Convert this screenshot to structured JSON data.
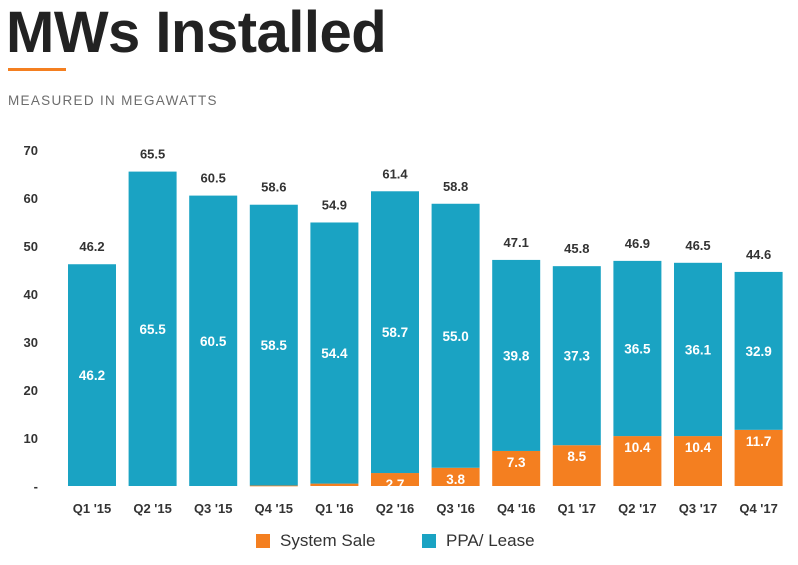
{
  "header": {
    "title": "MWs Installed",
    "subtitle": "MEASURED IN MEGAWATTS"
  },
  "colors": {
    "system_sale": "#f47f20",
    "ppa_lease": "#1aa3c3",
    "accent_rule": "#f47f20"
  },
  "legend": {
    "system_sale": "System Sale",
    "ppa_lease": "PPA/ Lease"
  },
  "chart_data": {
    "type": "bar",
    "stacked": true,
    "categories": [
      "Q1 '15",
      "Q2 '15",
      "Q3 '15",
      "Q4 '15",
      "Q1 '16",
      "Q2 '16",
      "Q3 '16",
      "Q4 '16",
      "Q1 '17",
      "Q2 '17",
      "Q3 '17",
      "Q4 '17"
    ],
    "series": [
      {
        "name": "System Sale",
        "values": [
          0,
          0,
          0,
          0.1,
          0.5,
          2.7,
          3.8,
          7.3,
          8.5,
          10.4,
          10.4,
          11.7
        ],
        "labels": [
          "",
          "",
          "",
          "",
          "",
          "2.7",
          "3.8",
          "7.3",
          "8.5",
          "10.4",
          "10.4",
          "11.7"
        ]
      },
      {
        "name": "PPA/ Lease",
        "values": [
          46.2,
          65.5,
          60.5,
          58.5,
          54.4,
          58.7,
          55.0,
          39.8,
          37.3,
          36.5,
          36.1,
          32.9
        ],
        "labels": [
          "46.2",
          "65.5",
          "60.5",
          "58.5",
          "54.4",
          "58.7",
          "55.0",
          "39.8",
          "37.3",
          "36.5",
          "36.1",
          "32.9"
        ]
      }
    ],
    "totals": [
      "46.2",
      "65.5",
      "60.5",
      "58.6",
      "54.9",
      "61.4",
      "58.8",
      "47.1",
      "45.8",
      "46.9",
      "46.5",
      "44.6"
    ],
    "y_ticks": [
      "-",
      "10",
      "20",
      "30",
      "40",
      "50",
      "60",
      "70"
    ],
    "ylim": [
      0,
      70
    ],
    "grid": false,
    "legend_position": "bottom"
  }
}
